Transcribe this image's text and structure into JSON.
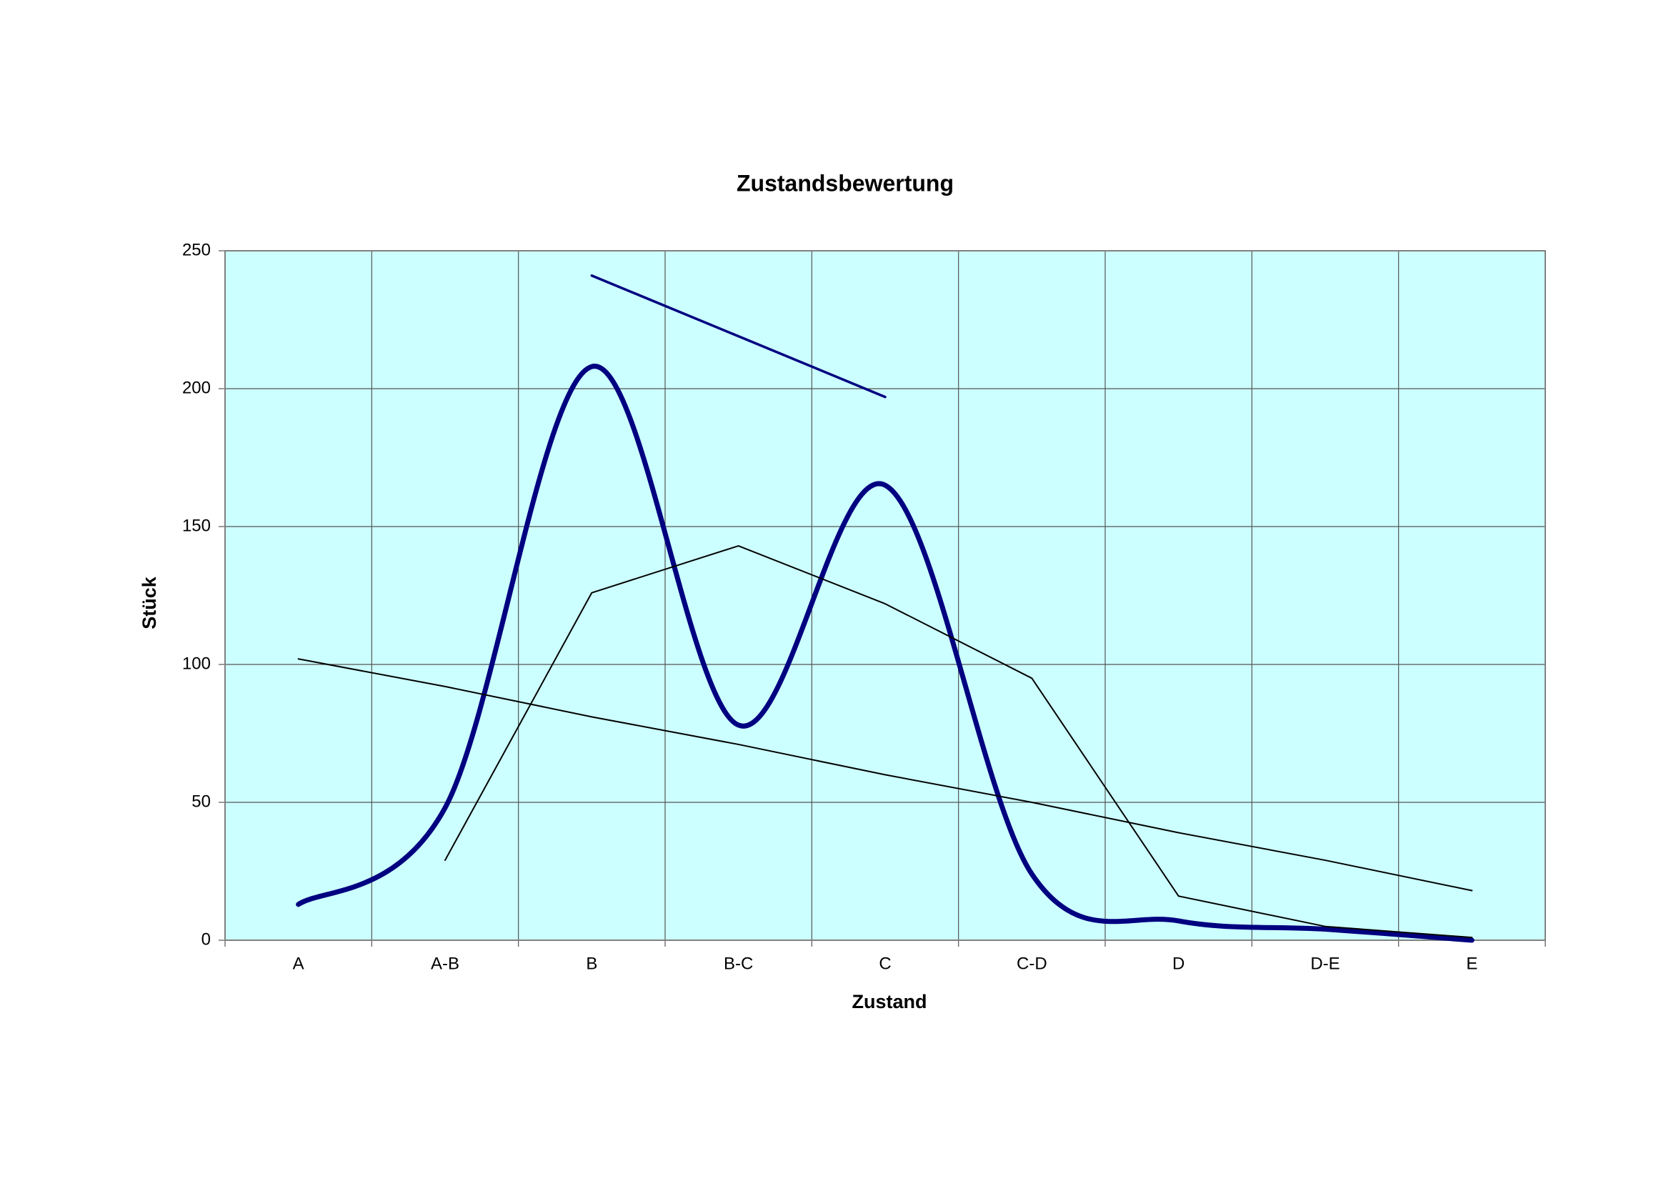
{
  "chart_data": {
    "type": "line",
    "title": "Zustandsbewertung",
    "x_label": "Zustand",
    "y_label": "Stück",
    "categories": [
      "A",
      "A-B",
      "B",
      "B-C",
      "C",
      "C-D",
      "D",
      "D-E",
      "E"
    ],
    "series": [
      {
        "color": "#000080",
        "width": 7,
        "smooth": true,
        "values": [
          13,
          48,
          208,
          78,
          165,
          24,
          7,
          4,
          0
        ]
      },
      {
        "color": "#000000",
        "width": 2,
        "smooth": false,
        "values": [
          null,
          29,
          126,
          143,
          122,
          95,
          16,
          5,
          1
        ]
      },
      {
        "color": "#000000",
        "width": 2,
        "smooth": false,
        "values": [
          102,
          92,
          81,
          71,
          60,
          50,
          39,
          29,
          18
        ]
      },
      {
        "color": "#000080",
        "width": 3.5,
        "smooth": false,
        "values": [
          null,
          null,
          241,
          219,
          197,
          null,
          null,
          null,
          null
        ]
      }
    ],
    "ylim": [
      0,
      250
    ],
    "yticks": [
      0,
      50,
      100,
      150,
      200,
      250
    ],
    "grid": true,
    "plot_background": "#ccffff"
  }
}
